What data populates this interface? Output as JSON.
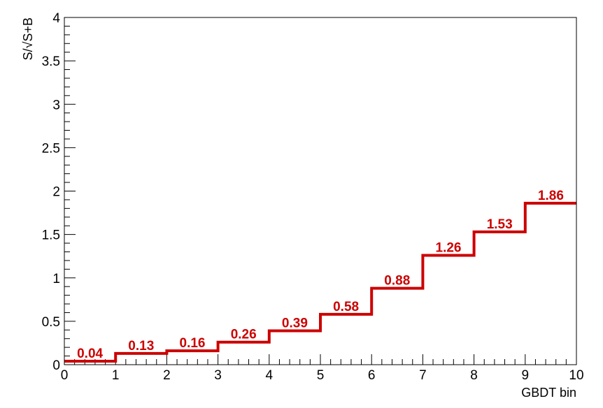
{
  "chart_data": {
    "type": "step",
    "x_bin_edges": [
      0,
      1,
      2,
      3,
      4,
      5,
      6,
      7,
      8,
      9,
      10
    ],
    "values": [
      0.04,
      0.13,
      0.16,
      0.26,
      0.39,
      0.58,
      0.88,
      1.26,
      1.53,
      1.86
    ],
    "value_labels": [
      "0.04",
      "0.13",
      "0.16",
      "0.26",
      "0.39",
      "0.58",
      "0.88",
      "1.26",
      "1.53",
      "1.86"
    ],
    "xlabel": "GBDT bin",
    "ylabel": "S/√S+B",
    "xlim": [
      0,
      10
    ],
    "ylim": [
      0,
      4
    ],
    "x_tick_labels": [
      "0",
      "1",
      "2",
      "3",
      "4",
      "5",
      "6",
      "7",
      "8",
      "9",
      "10"
    ],
    "y_ticks": [
      0,
      0.5,
      1,
      1.5,
      2,
      2.5,
      3,
      3.5,
      4
    ],
    "y_tick_labels": [
      "0",
      "0.5",
      "1",
      "1.5",
      "2",
      "2.5",
      "3",
      "3.5",
      "4"
    ],
    "grid": false,
    "legend": "none",
    "line_color": "#cc0000",
    "label_color": "#cc0000"
  }
}
